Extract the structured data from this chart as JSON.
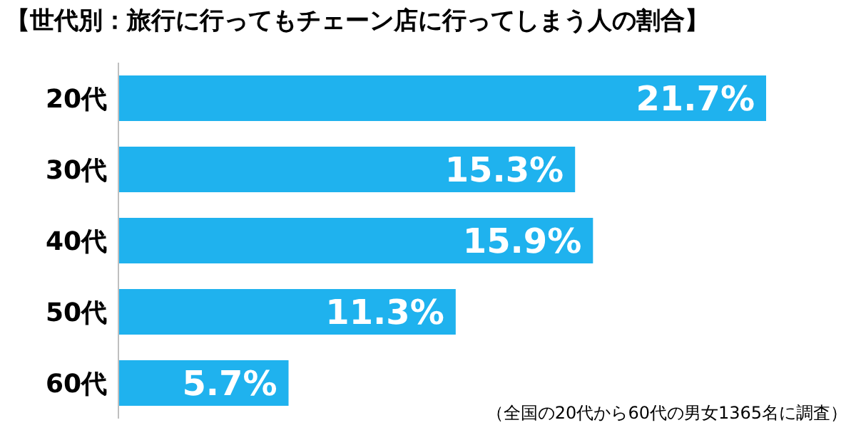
{
  "chart_data": {
    "type": "bar",
    "orientation": "horizontal",
    "title": "【世代別：旅行に行ってもチェーン店に行ってしまう人の割合】",
    "categories": [
      "20代",
      "30代",
      "40代",
      "50代",
      "60代"
    ],
    "values": [
      21.7,
      15.3,
      15.9,
      11.3,
      5.7
    ],
    "value_labels": [
      "21.7%",
      "15.3%",
      "15.9%",
      "11.3%",
      "5.7%"
    ],
    "color": "#1fb2ee",
    "annotations": [
      "（全国の20代から60代の男女1365名に調査）"
    ]
  }
}
